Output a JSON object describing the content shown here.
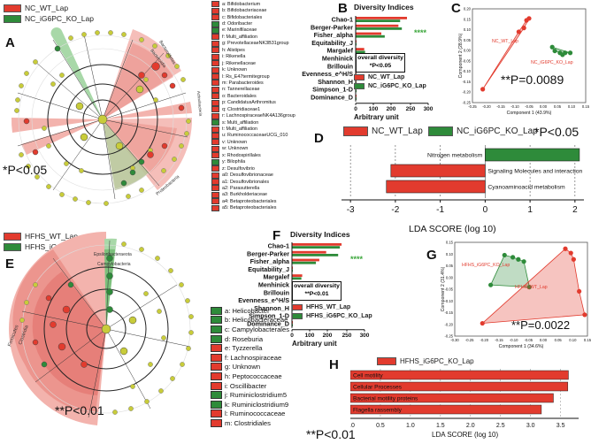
{
  "colors": {
    "wt": "#e23b2e",
    "ko": "#2e8b3a",
    "node": "#c8cc3a",
    "shade_red": "#f3b3ad",
    "shade_green": "#a8d8a8"
  },
  "panel_a": {
    "letter": "A",
    "legend": [
      "NC_WT_Lap",
      "NC_iG6PC_KO_Lap"
    ],
    "pvalue": "*P<0.05",
    "clade_labels": [
      "Bacteroidetes",
      "Bacteroidia",
      "Actinobacteria",
      "Proteobacteria",
      "Firmicutes",
      "Clostridia"
    ],
    "taxa": [
      {
        "k": "a",
        "n": "Bifidobacterium",
        "c": "wt"
      },
      {
        "k": "b",
        "n": "Bifidobacteriaceae",
        "c": "wt"
      },
      {
        "k": "c",
        "n": "Bifidobacteriales",
        "c": "wt"
      },
      {
        "k": "d",
        "n": "Odoribacter",
        "c": "ko"
      },
      {
        "k": "e",
        "n": "Marinifilaceae",
        "c": "ko"
      },
      {
        "k": "f",
        "n": "Multi_affiliation",
        "c": "wt"
      },
      {
        "k": "g",
        "n": "PrevotellaceaeNK3B31group",
        "c": "wt"
      },
      {
        "k": "h",
        "n": "Alistipes",
        "c": "wt"
      },
      {
        "k": "i",
        "n": "Rikenella",
        "c": "wt"
      },
      {
        "k": "j",
        "n": "Rikenellaceae",
        "c": "wt"
      },
      {
        "k": "k",
        "n": "Unknown",
        "c": "wt"
      },
      {
        "k": "l",
        "n": "Rs_E47termitegroup",
        "c": "wt"
      },
      {
        "k": "m",
        "n": "Parabacteroides",
        "c": "wt"
      },
      {
        "k": "n",
        "n": "Tannerellaceae",
        "c": "wt"
      },
      {
        "k": "o",
        "n": "Bacteroidales",
        "c": "wt"
      },
      {
        "k": "p",
        "n": "CandidatusArthromitus",
        "c": "wt"
      },
      {
        "k": "q",
        "n": "Clostridiaceae1",
        "c": "wt"
      },
      {
        "k": "r",
        "n": "LachnospiraceaeNK4A136group",
        "c": "wt"
      },
      {
        "k": "s",
        "n": "Multi_affiliation",
        "c": "ko"
      },
      {
        "k": "t",
        "n": "Multi_affiliation",
        "c": "wt"
      },
      {
        "k": "u",
        "n": "RuminococcaceaeUCG_010",
        "c": "wt"
      },
      {
        "k": "v",
        "n": "Unknown",
        "c": "wt"
      },
      {
        "k": "w",
        "n": "Unknown",
        "c": "wt"
      },
      {
        "k": "x",
        "n": "Rhodospirillales",
        "c": "wt"
      },
      {
        "k": "y",
        "n": "Bilophila",
        "c": "ko"
      },
      {
        "k": "z",
        "n": "Desulfovibrio",
        "c": "wt"
      },
      {
        "k": "a0",
        "n": "Desulfovibrionaceae",
        "c": "wt"
      },
      {
        "k": "a1",
        "n": "Desulfovibrionales",
        "c": "wt"
      },
      {
        "k": "a2",
        "n": "Parasutterella",
        "c": "wt"
      },
      {
        "k": "a3",
        "n": "Burkholderiaceae",
        "c": "wt"
      },
      {
        "k": "a4",
        "n": "Betaproteobacteriales",
        "c": "wt"
      },
      {
        "k": "a5",
        "n": "Betaproteobacteriales",
        "c": "wt"
      }
    ]
  },
  "panel_b": {
    "letter": "B",
    "title": "Diversity Indices",
    "xlabel": "Arbitrary unit",
    "stars": "****",
    "box_title": "overall diversity",
    "box_p": "*P<0.05",
    "legend": [
      "NC_WT_Lap",
      "NC_iG6PC_KO_Lap"
    ],
    "chart_data": {
      "type": "bar",
      "categories": [
        "Chao-1",
        "Berger-Parker",
        "Fisher_alpha",
        "Equitability_J",
        "Margalef",
        "Menhinick",
        "Brillouin",
        "Evenness_e^H/S",
        "Shannon_H",
        "Simpson_1-D",
        "Dominance_D"
      ],
      "series": [
        {
          "name": "NC_WT_Lap",
          "values": [
            310,
            250,
            150,
            1,
            50,
            3,
            4,
            1,
            5,
            1,
            1
          ]
        },
        {
          "name": "NC_iG6PC_KO_Lap",
          "values": [
            260,
            270,
            170,
            1,
            55,
            3,
            4,
            1,
            5,
            1,
            1
          ]
        }
      ],
      "ticks": [
        "0",
        "100",
        "200",
        "250",
        "300"
      ]
    }
  },
  "panel_c": {
    "letter": "C",
    "labels": [
      "NC_WT_Lap",
      "NC_iG6PC_KO_Lap"
    ],
    "pvalue": "**P=0.0089",
    "xlabel": "Component 1 (43.9%)",
    "ylabel": "Component 2 (28.9%)",
    "xticks": [
      "-0.25",
      "-0.20",
      "-0.15",
      "-0.10",
      "-0.05",
      "0.00",
      "0.05",
      "0.10",
      "0.15"
    ],
    "yticks": [
      "0.20",
      "0.15",
      "0.10",
      "0.05",
      "0.00",
      "-0.05",
      "-0.10",
      "-0.15",
      "-0.20",
      "-0.25"
    ],
    "chart_data": {
      "type": "scatter",
      "series": [
        {
          "name": "NC_WT_Lap",
          "points": [
            [
              -0.23,
              -0.2
            ],
            [
              -0.06,
              0.16
            ],
            [
              -0.05,
              0.17
            ],
            [
              -0.07,
              0.12
            ],
            [
              -0.09,
              0.1
            ]
          ]
        },
        {
          "name": "NC_iG6PC_KO_Lap",
          "points": [
            [
              0.04,
              0.02
            ],
            [
              0.07,
              -0.01
            ],
            [
              0.09,
              -0.01
            ],
            [
              0.11,
              -0.01
            ],
            [
              0.05,
              0.0
            ],
            [
              0.08,
              -0.02
            ]
          ]
        }
      ]
    }
  },
  "panel_d": {
    "letter": "D",
    "legend": [
      "NC_WT_Lap",
      "NC_iG6PC_KO_Lap"
    ],
    "pvalue": "*P<0.05",
    "xlabel": "LDA SCORE (log 10)",
    "ticks": [
      "-3",
      "-2",
      "-1",
      "0",
      "1",
      "2"
    ],
    "chart_data": {
      "type": "bar",
      "categories": [
        "Nitrogen metabolism",
        "Signaling Molecules and interaction",
        "Cyanoaminoacid metabolism"
      ],
      "values": [
        2.1,
        -2.1,
        -2.2
      ],
      "colors": [
        "ko",
        "wt",
        "wt"
      ]
    }
  },
  "panel_e": {
    "letter": "E",
    "legend": [
      "HFHS_WT_Lap",
      "HFHS_iG6PC_KO_Lap"
    ],
    "pvalue": "**P<0.01",
    "clade_labels": [
      "Epsilonbacteraeota",
      "Campylobacteria",
      "Firmicutes",
      "Clostridia"
    ],
    "taxa": [
      {
        "k": "a",
        "n": "Helicobacter",
        "c": "ko"
      },
      {
        "k": "b",
        "n": "Helicobacteraceae",
        "c": "ko"
      },
      {
        "k": "c",
        "n": "Campylobacterales",
        "c": "ko"
      },
      {
        "k": "d",
        "n": "Roseburia",
        "c": "ko"
      },
      {
        "k": "e",
        "n": "Tyzzerella",
        "c": "wt"
      },
      {
        "k": "f",
        "n": "Lachnospiraceae",
        "c": "wt"
      },
      {
        "k": "g",
        "n": "Unknown",
        "c": "wt"
      },
      {
        "k": "h",
        "n": "Peptococcaceae",
        "c": "wt"
      },
      {
        "k": "i",
        "n": "Oscillibacter",
        "c": "wt"
      },
      {
        "k": "j",
        "n": "Ruminiclostridium5",
        "c": "ko"
      },
      {
        "k": "k",
        "n": "Ruminiclostridium9",
        "c": "ko"
      },
      {
        "k": "l",
        "n": "Ruminococcaceae",
        "c": "wt"
      },
      {
        "k": "m",
        "n": "Clostridiales",
        "c": "wt"
      }
    ]
  },
  "panel_f": {
    "letter": "F",
    "title": "Diversity Indices",
    "xlabel": "Arbitrary unit",
    "stars": "****",
    "box_title": "overall diversity",
    "box_p": "**P<0.01",
    "legend": [
      "HFHS_WT_Lap",
      "HFHS_iG6PC_KO_Lap"
    ],
    "chart_data": {
      "type": "bar",
      "categories": [
        "Chao-1",
        "Berger-Parker",
        "Fisher_alpha",
        "Equitability_J",
        "Margalef",
        "Menhinick",
        "Brillouin",
        "Evenness_e^H/S",
        "Shannon_H",
        "Simpson_1-D",
        "Dominance_D"
      ],
      "series": [
        {
          "name": "HFHS_WT_Lap",
          "values": [
            290,
            200,
            160,
            1,
            60,
            3,
            4,
            1,
            5,
            1,
            1
          ]
        },
        {
          "name": "HFHS_iG6PC_KO_Lap",
          "values": [
            280,
            270,
            140,
            1,
            55,
            3,
            4,
            1,
            5,
            1,
            1
          ]
        }
      ],
      "ticks": [
        "0",
        "100",
        "200",
        "250",
        "300"
      ]
    }
  },
  "panel_g": {
    "letter": "G",
    "labels": [
      "HFHS_iG6PC_KO_Lap",
      "HFHS_WT_Lap"
    ],
    "pvalue": "**P=0.0022",
    "xlabel": "Component 1 (34.6%)",
    "ylabel": "Component 2 (31.4%)",
    "xticks": [
      "-0.30",
      "-0.25",
      "-0.20",
      "-0.15",
      "-0.10",
      "-0.05",
      "0.00",
      "0.05",
      "0.10",
      "0.15"
    ],
    "yticks": [
      "0.15",
      "0.10",
      "0.05",
      "0.00",
      "-0.05",
      "-0.10",
      "-0.15",
      "-0.20",
      "-0.25"
    ],
    "chart_data": {
      "type": "scatter",
      "series": [
        {
          "name": "HFHS_iG6PC_KO_Lap",
          "points": [
            [
              -0.13,
              0.11
            ],
            [
              -0.1,
              0.1
            ],
            [
              -0.08,
              0.09
            ],
            [
              -0.06,
              0.08
            ],
            [
              -0.18,
              -0.03
            ],
            [
              -0.04,
              -0.04
            ]
          ]
        },
        {
          "name": "HFHS_WT_Lap",
          "points": [
            [
              -0.21,
              -0.21
            ],
            [
              0.09,
              0.14
            ],
            [
              0.11,
              0.12
            ],
            [
              0.12,
              0.09
            ],
            [
              0.14,
              -0.06
            ],
            [
              0.16,
              -0.17
            ]
          ]
        }
      ]
    }
  },
  "panel_h": {
    "letter": "H",
    "legend": [
      "HFHS_iG6PC_KO_Lap"
    ],
    "pvalue": "**P<0.01",
    "xlabel": "LDA SCORE (log 10)",
    "ticks": [
      "0.0",
      "0.5",
      "1.0",
      "1.5",
      "2.0",
      "2.5",
      "3.0",
      "3.5"
    ],
    "chart_data": {
      "type": "bar",
      "categories": [
        "Cell motility",
        "Cellular Processes",
        "Bacterial motility proteins",
        "Flagella rassembly"
      ],
      "values": [
        3.63,
        3.62,
        3.38,
        3.18
      ]
    }
  }
}
